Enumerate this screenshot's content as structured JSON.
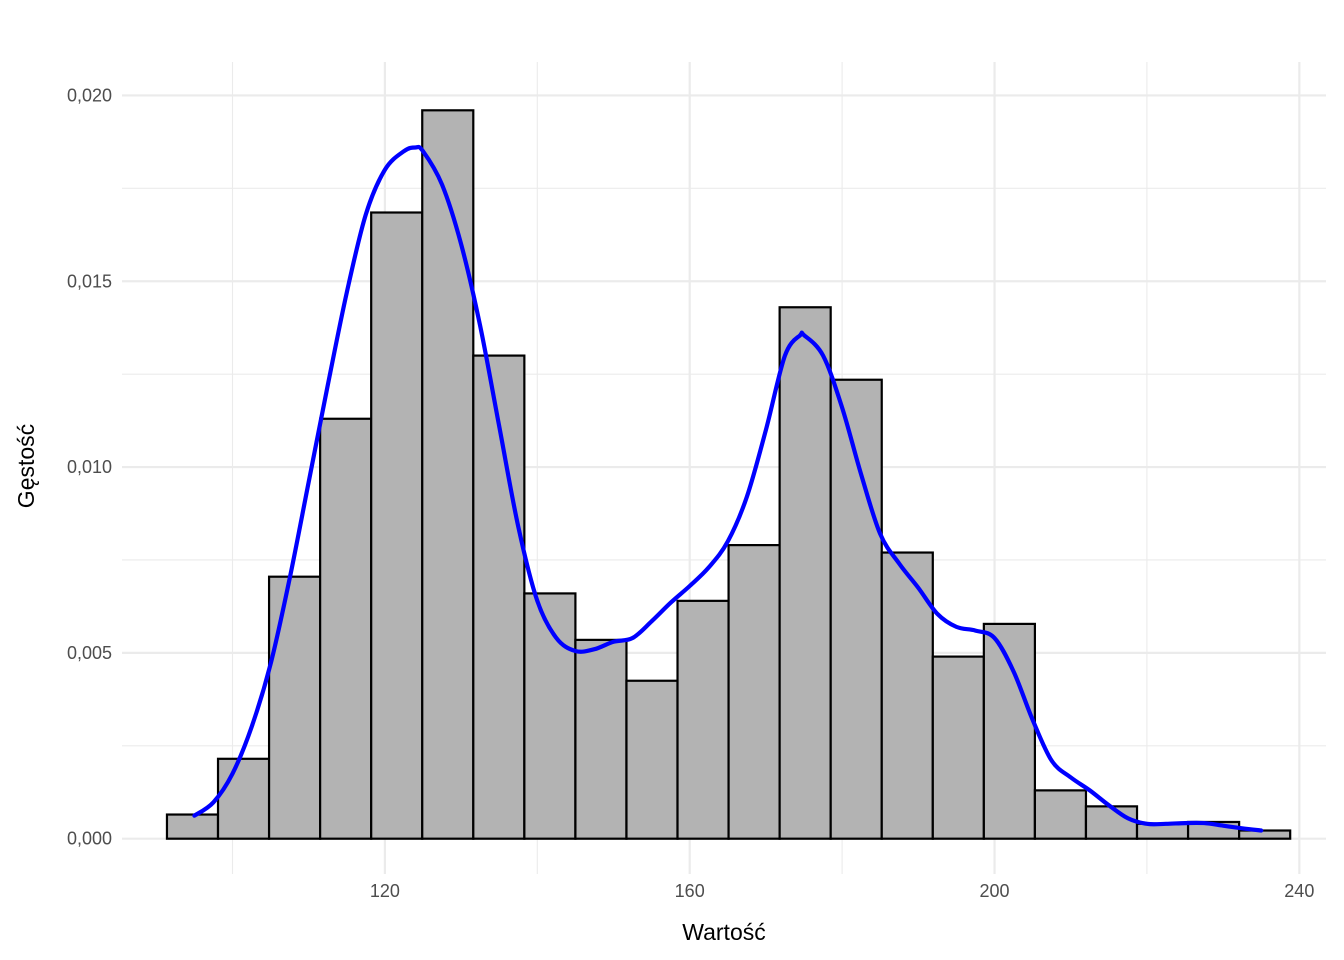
{
  "chart_data": {
    "type": "bar",
    "title": "",
    "xlabel": "Wartość",
    "ylabel": "Gęstość",
    "xlim": [
      85.5,
      243.5
    ],
    "ylim": [
      -0.00095,
      0.0209
    ],
    "x_ticks": [
      {
        "value": 120,
        "label": "120"
      },
      {
        "value": 160,
        "label": "160"
      },
      {
        "value": 200,
        "label": "200"
      },
      {
        "value": 240,
        "label": "240"
      }
    ],
    "y_ticks": [
      {
        "value": 0.0,
        "label": "0,000"
      },
      {
        "value": 0.005,
        "label": "0,005"
      },
      {
        "value": 0.01,
        "label": "0,010"
      },
      {
        "value": 0.015,
        "label": "0,015"
      },
      {
        "value": 0.02,
        "label": "0,020"
      }
    ],
    "grid": true,
    "bin_width": 6.7,
    "bins": [
      {
        "x0": 91.4,
        "x1": 98.1,
        "density": 0.00065
      },
      {
        "x0": 98.1,
        "x1": 104.8,
        "density": 0.00215
      },
      {
        "x0": 104.8,
        "x1": 111.5,
        "density": 0.00705
      },
      {
        "x0": 111.5,
        "x1": 118.2,
        "density": 0.0113
      },
      {
        "x0": 118.2,
        "x1": 124.9,
        "density": 0.01685
      },
      {
        "x0": 124.9,
        "x1": 131.6,
        "density": 0.0196
      },
      {
        "x0": 131.6,
        "x1": 138.3,
        "density": 0.013
      },
      {
        "x0": 138.3,
        "x1": 145.0,
        "density": 0.0066
      },
      {
        "x0": 145.0,
        "x1": 151.7,
        "density": 0.00535
      },
      {
        "x0": 151.7,
        "x1": 158.4,
        "density": 0.00425
      },
      {
        "x0": 158.4,
        "x1": 165.1,
        "density": 0.0064
      },
      {
        "x0": 165.1,
        "x1": 171.8,
        "density": 0.0079
      },
      {
        "x0": 171.8,
        "x1": 178.5,
        "density": 0.0143
      },
      {
        "x0": 178.5,
        "x1": 185.2,
        "density": 0.01235
      },
      {
        "x0": 185.2,
        "x1": 191.9,
        "density": 0.0077
      },
      {
        "x0": 191.9,
        "x1": 198.6,
        "density": 0.0049
      },
      {
        "x0": 198.6,
        "x1": 205.3,
        "density": 0.00578
      },
      {
        "x0": 205.3,
        "x1": 212.0,
        "density": 0.0013
      },
      {
        "x0": 212.0,
        "x1": 218.7,
        "density": 0.00087
      },
      {
        "x0": 218.7,
        "x1": 225.4,
        "density": 0.0004
      },
      {
        "x0": 225.4,
        "x1": 232.1,
        "density": 0.00045
      },
      {
        "x0": 232.1,
        "x1": 238.8,
        "density": 0.00022
      }
    ],
    "density_curve": {
      "x": [
        95.0,
        97.5,
        100.0,
        102.5,
        105.0,
        107.5,
        110.0,
        112.5,
        115.0,
        117.5,
        120.0,
        122.5,
        124.0,
        125.0,
        127.5,
        130.0,
        132.5,
        135.0,
        137.5,
        140.0,
        142.5,
        145.0,
        147.5,
        150.0,
        152.5,
        155.0,
        157.5,
        160.0,
        162.5,
        165.0,
        167.5,
        170.0,
        172.5,
        174.5,
        175.0,
        177.5,
        180.0,
        182.5,
        185.0,
        187.5,
        190.0,
        192.5,
        195.0,
        197.5,
        200.0,
        202.5,
        205.0,
        207.5,
        210.0,
        212.5,
        215.0,
        217.5,
        220.0,
        222.5,
        225.0,
        227.5,
        230.0,
        232.5,
        235.0
      ],
      "y": [
        0.00062,
        0.00098,
        0.00175,
        0.003,
        0.0047,
        0.007,
        0.0096,
        0.0122,
        0.0147,
        0.0168,
        0.018,
        0.0185,
        0.0186,
        0.0185,
        0.0176,
        0.016,
        0.0138,
        0.0111,
        0.0084,
        0.0064,
        0.0054,
        0.00505,
        0.0051,
        0.0053,
        0.0054,
        0.00585,
        0.00635,
        0.0068,
        0.0073,
        0.008,
        0.0092,
        0.011,
        0.013,
        0.01355,
        0.01355,
        0.013,
        0.0116,
        0.0098,
        0.0082,
        0.0074,
        0.00675,
        0.00605,
        0.0057,
        0.0056,
        0.0054,
        0.0045,
        0.0032,
        0.0021,
        0.00165,
        0.0013,
        0.0009,
        0.00055,
        0.0004,
        0.0004,
        0.00042,
        0.00042,
        0.00035,
        0.00028,
        0.00022
      ]
    },
    "bar_fill": "#b3b3b3",
    "bar_stroke": "#000000",
    "curve_color": "#0000ff",
    "grid_color": "#ebebeb"
  }
}
